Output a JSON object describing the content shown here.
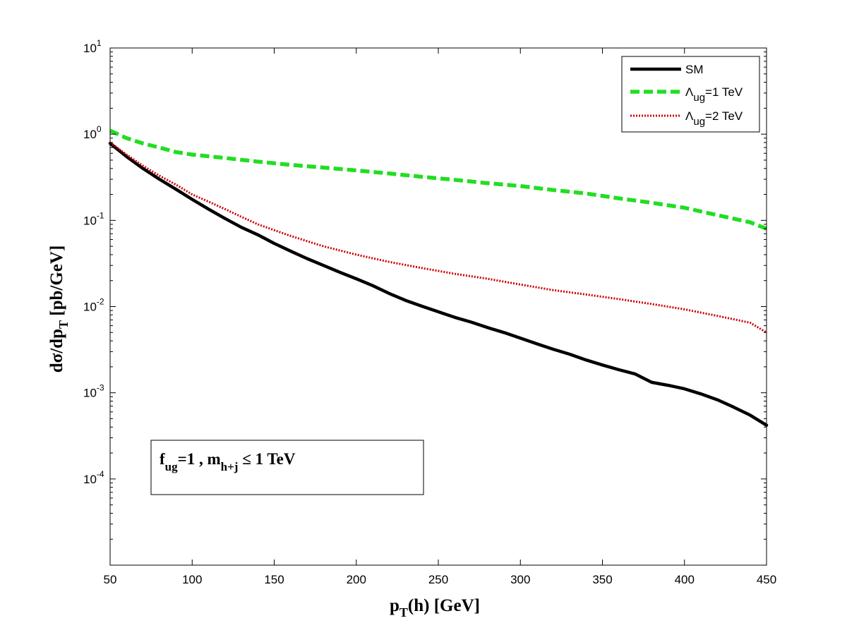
{
  "chart_data": {
    "type": "line",
    "xlabel": {
      "main": "p",
      "sub": "T",
      "rest": "(h) [GeV]"
    },
    "ylabel": {
      "main": "dσ/dp",
      "sub": "T",
      "rest": " [pb/GeV]"
    },
    "xlim": [
      50,
      450
    ],
    "ylim": [
      1e-05,
      10
    ],
    "yscale": "log",
    "grid": false,
    "legend_position": "top-right",
    "x_ticks": [
      50,
      100,
      150,
      200,
      250,
      300,
      350,
      400,
      450
    ],
    "x_tick_labels": [
      "50",
      "100",
      "150",
      "200",
      "250",
      "300",
      "350",
      "400",
      "450"
    ],
    "y_ticks": [
      {
        "value": 10,
        "base": "10",
        "exp": "1"
      },
      {
        "value": 1,
        "base": "10",
        "exp": "0"
      },
      {
        "value": 0.1,
        "base": "10",
        "exp": "-1"
      },
      {
        "value": 0.01,
        "base": "10",
        "exp": "-2"
      },
      {
        "value": 0.001,
        "base": "10",
        "exp": "-3"
      },
      {
        "value": 0.0001,
        "base": "10",
        "exp": "-4"
      }
    ],
    "series": [
      {
        "name": "SM",
        "legend": {
          "main": "SM",
          "sub": "",
          "rest": ""
        },
        "color": "#000000",
        "style": "solid",
        "x": [
          50,
          60,
          70,
          80,
          90,
          100,
          110,
          120,
          130,
          140,
          150,
          160,
          170,
          180,
          190,
          200,
          210,
          220,
          230,
          240,
          250,
          260,
          270,
          280,
          290,
          300,
          310,
          320,
          330,
          340,
          350,
          360,
          370,
          380,
          390,
          400,
          410,
          420,
          430,
          440,
          450
        ],
        "y": [
          0.78,
          0.55,
          0.4,
          0.3,
          0.23,
          0.175,
          0.135,
          0.105,
          0.083,
          0.068,
          0.054,
          0.044,
          0.036,
          0.03,
          0.025,
          0.021,
          0.0175,
          0.0142,
          0.0118,
          0.0101,
          0.0087,
          0.0075,
          0.0066,
          0.0057,
          0.005,
          0.0043,
          0.0037,
          0.0032,
          0.0028,
          0.0024,
          0.0021,
          0.00185,
          0.00165,
          0.00132,
          0.00122,
          0.00111,
          0.00097,
          0.00083,
          0.00068,
          0.00055,
          0.00042
        ]
      },
      {
        "name": "Λug=1 TeV",
        "legend": {
          "main": "Λ",
          "sub": "ug",
          "rest": "=1 TeV"
        },
        "color": "#22dd22",
        "style": "dashed",
        "x": [
          50,
          60,
          70,
          80,
          90,
          100,
          120,
          140,
          160,
          180,
          200,
          220,
          240,
          260,
          280,
          300,
          320,
          340,
          360,
          380,
          400,
          420,
          440,
          450
        ],
        "y": [
          1.1,
          0.9,
          0.78,
          0.7,
          0.62,
          0.58,
          0.53,
          0.48,
          0.44,
          0.41,
          0.38,
          0.35,
          0.32,
          0.295,
          0.27,
          0.25,
          0.225,
          0.205,
          0.18,
          0.16,
          0.14,
          0.115,
          0.095,
          0.08
        ]
      },
      {
        "name": "Λug=2 TeV",
        "legend": {
          "main": "Λ",
          "sub": "ug",
          "rest": "=2 TeV"
        },
        "color": "#cc0000",
        "style": "dotted",
        "x": [
          50,
          60,
          70,
          80,
          90,
          100,
          110,
          120,
          130,
          140,
          150,
          160,
          180,
          200,
          220,
          240,
          260,
          280,
          300,
          320,
          340,
          360,
          380,
          400,
          420,
          440,
          450
        ],
        "y": [
          0.8,
          0.58,
          0.43,
          0.33,
          0.26,
          0.2,
          0.165,
          0.135,
          0.11,
          0.09,
          0.077,
          0.066,
          0.05,
          0.04,
          0.033,
          0.028,
          0.024,
          0.021,
          0.018,
          0.0155,
          0.0138,
          0.0122,
          0.0107,
          0.0093,
          0.0078,
          0.0065,
          0.005
        ]
      }
    ],
    "annotation": {
      "parts": [
        {
          "t": "f",
          "sub": false
        },
        {
          "t": "ug",
          "sub": true
        },
        {
          "t": "=1 , m",
          "sub": false
        },
        {
          "t": "h+j",
          "sub": true
        },
        {
          "t": " ≤ 1 TeV",
          "sub": false
        }
      ]
    }
  }
}
